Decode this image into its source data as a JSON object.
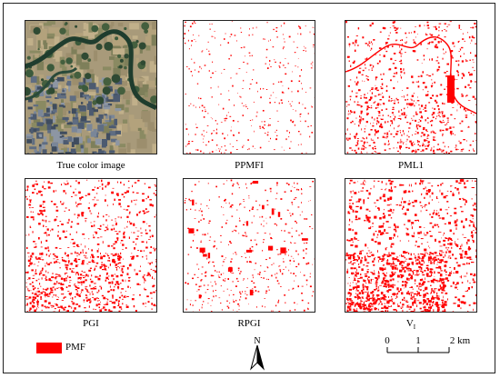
{
  "figure": {
    "panels": [
      {
        "id": "true-color",
        "caption": "True color image",
        "kind": "satellite"
      },
      {
        "id": "ppmfi",
        "caption": "PPMFI",
        "kind": "index",
        "density": 0.12
      },
      {
        "id": "pmli",
        "caption": "PML1",
        "kind": "index",
        "density": 0.45
      },
      {
        "id": "pgi",
        "caption": "PGI",
        "kind": "index",
        "density": 0.55
      },
      {
        "id": "rpgi",
        "caption": "RPGI",
        "kind": "index",
        "density": 0.18
      },
      {
        "id": "vi",
        "caption": "V",
        "caption_subscript": "I",
        "kind": "index",
        "density": 0.75
      }
    ]
  },
  "legend": {
    "label": "PMF",
    "color": "#ff0000"
  },
  "north_arrow": {
    "label": "N"
  },
  "scale_bar": {
    "ticks": [
      "0",
      "1",
      "2 km"
    ]
  },
  "colors": {
    "pmf": "#ff0000",
    "water": "#1f3d2e",
    "urban": "#6b7a8c",
    "farmland": "#a89a7a"
  }
}
